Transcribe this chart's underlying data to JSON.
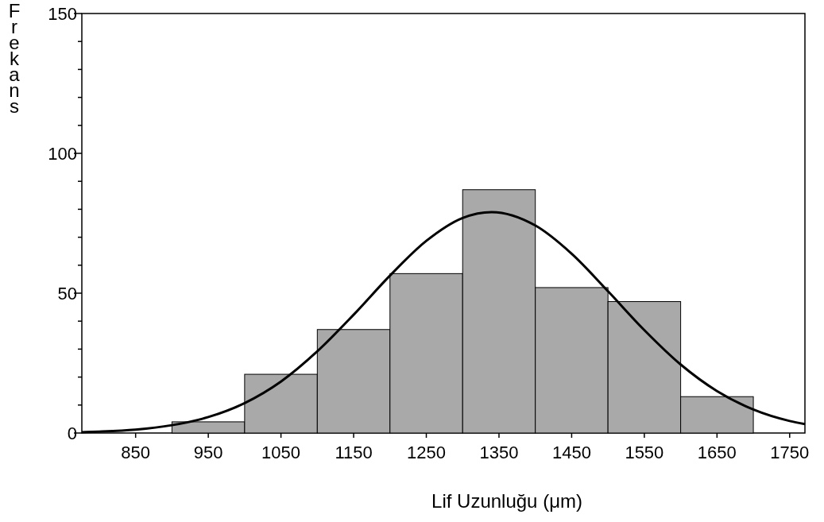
{
  "chart_data": {
    "type": "histogram",
    "xlabel": "Lif Uzunluğu (μm)",
    "ylabel": "Frekans",
    "bins": [
      900,
      1000,
      1100,
      1200,
      1300,
      1400,
      1500,
      1600,
      1700
    ],
    "values": [
      4,
      21,
      37,
      57,
      87,
      52,
      47,
      13
    ],
    "color": "#a9a9a9",
    "series": [
      {
        "type": "line",
        "color": "#000000",
        "x": [
          776,
          800,
          850,
          900,
          950,
          1000,
          1050,
          1100,
          1150,
          1200,
          1250,
          1300,
          1340,
          1400,
          1450,
          1500,
          1550,
          1600,
          1650,
          1700,
          1750,
          1771
        ],
        "values": [
          0.3,
          0.5,
          1.2,
          2.8,
          5.7,
          10.7,
          18.4,
          29.2,
          42.3,
          56.3,
          68.7,
          76.9,
          79,
          74.2,
          64.1,
          50.7,
          36.8,
          24.5,
          15,
          8.4,
          4.3,
          3.2
        ]
      }
    ],
    "xlim": [
      776,
      1771
    ],
    "ylim": [
      0,
      150
    ],
    "xticks": [
      850,
      950,
      1050,
      1150,
      1250,
      1350,
      1450,
      1550,
      1650,
      1750
    ],
    "yticks": [
      0,
      {
        "value": 10,
        "label": null
      },
      {
        "value": 20,
        "label": null
      },
      {
        "value": 30,
        "label": null
      },
      {
        "value": 40,
        "label": null
      },
      50,
      {
        "value": 60,
        "label": null
      },
      {
        "value": 70,
        "label": null
      },
      {
        "value": 80,
        "label": null
      },
      {
        "value": 90,
        "label": null
      },
      100,
      {
        "value": 110,
        "label": null
      },
      {
        "value": 120,
        "label": null
      },
      {
        "value": 130,
        "label": null
      },
      {
        "value": 140,
        "label": null
      },
      150
    ]
  }
}
